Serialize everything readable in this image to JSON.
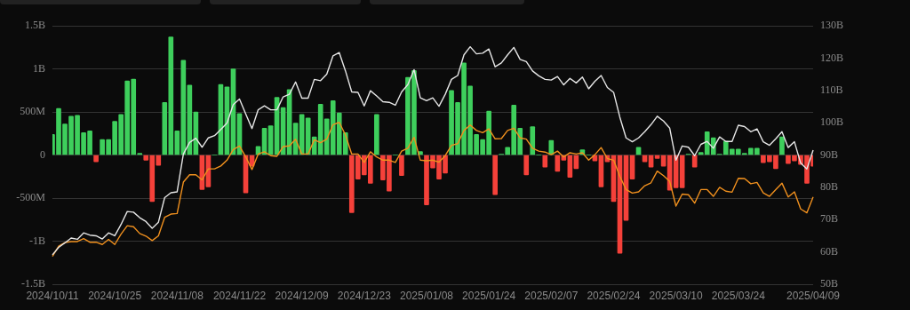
{
  "chart_data": {
    "type": "bar",
    "categories": [
      "2024/10/11",
      null,
      null,
      null,
      null,
      null,
      null,
      null,
      null,
      null,
      "2024/10/25",
      null,
      null,
      null,
      null,
      null,
      null,
      null,
      null,
      null,
      "2024/11/08",
      null,
      null,
      null,
      null,
      null,
      null,
      null,
      null,
      null,
      "2024/11/22",
      null,
      null,
      null,
      null,
      null,
      null,
      null,
      null,
      null,
      "2024/12/09",
      null,
      null,
      null,
      null,
      null,
      null,
      null,
      null,
      null,
      "2024/12/23",
      null,
      null,
      null,
      null,
      null,
      null,
      null,
      null,
      null,
      "2025/01/08",
      null,
      null,
      null,
      null,
      null,
      null,
      null,
      null,
      null,
      "2025/01/24",
      null,
      null,
      null,
      null,
      null,
      null,
      null,
      null,
      null,
      "2025/02/07",
      null,
      null,
      null,
      null,
      null,
      null,
      null,
      null,
      null,
      "2025/02/24",
      null,
      null,
      null,
      null,
      null,
      null,
      null,
      null,
      null,
      "2025/03/10",
      null,
      null,
      null,
      null,
      null,
      null,
      null,
      null,
      null,
      "2025/03/24",
      null,
      null,
      null,
      null,
      null,
      null,
      null,
      null,
      null,
      null,
      null,
      "2025/04/09"
    ],
    "series": [
      {
        "values": [
          240000000.0,
          540000000.0,
          360000000.0,
          450000000.0,
          460000000.0,
          260000000.0,
          280000000.0,
          -80000000.0,
          180000000.0,
          180000000.0,
          390000000.0,
          470000000.0,
          860000000.0,
          880000000.0,
          20000000.0,
          -60000000.0,
          -540000000.0,
          -120000000.0,
          610000000.0,
          1370000000.0,
          280000000.0,
          1100000000.0,
          810000000.0,
          500000000.0,
          -400000000.0,
          -370000000.0,
          0,
          820000000.0,
          790000000.0,
          1000000000.0,
          480000000.0,
          -440000000.0,
          -130000000.0,
          100000000.0,
          310000000.0,
          340000000.0,
          670000000.0,
          550000000.0,
          760000000.0,
          370000000.0,
          470000000.0,
          430000000.0,
          210000000.0,
          590000000.0,
          420000000.0,
          630000000.0,
          490000000.0,
          260000000.0,
          -670000000.0,
          -280000000.0,
          -230000000.0,
          -330000000.0,
          470000000.0,
          -290000000.0,
          -420000000.0,
          0,
          -240000000.0,
          900000000.0,
          980000000.0,
          40000000.0,
          -580000000.0,
          -150000000.0,
          -280000000.0,
          -210000000.0,
          750000000.0,
          610000000.0,
          1070000000.0,
          800000000.0,
          240000000.0,
          180000000.0,
          510000000.0,
          -460000000.0,
          10000000.0,
          90000000.0,
          580000000.0,
          310000000.0,
          -230000000.0,
          330000000.0,
          0,
          -140000000.0,
          170000000.0,
          -190000000.0,
          -60000000.0,
          -260000000.0,
          -160000000.0,
          60000000.0,
          0,
          -70000000.0,
          -370000000.0,
          -80000000.0,
          -540000000.0,
          -1140000000.0,
          -760000000.0,
          -280000000.0,
          90000000.0,
          -80000000.0,
          -140000000.0,
          -40000000.0,
          -130000000.0,
          -410000000.0,
          -380000000.0,
          -380000000.0,
          10000000.0,
          -140000000.0,
          30000000.0,
          270000000.0,
          200000000.0,
          10000000.0,
          160000000.0,
          70000000.0,
          70000000.0,
          20000000.0,
          80000000.0,
          80000000.0,
          -90000000.0,
          -80000000.0,
          -160000000.0,
          210000000.0,
          -100000000.0,
          -70000000.0,
          -110000000.0,
          -330000000.0,
          -130000000.0
        ],
        "colors": [
          "#3ecf5c",
          "#3ecf5c",
          "#3ecf5c",
          "#3ecf5c",
          "#3ecf5c",
          "#3ecf5c",
          "#3ecf5c",
          "#f5413a",
          "#3ecf5c",
          "#3ecf5c",
          "#3ecf5c",
          "#3ecf5c",
          "#3ecf5c",
          "#3ecf5c",
          "#3ecf5c",
          "#f5413a",
          "#f5413a",
          "#f5413a",
          "#3ecf5c",
          "#3ecf5c",
          "#3ecf5c",
          "#3ecf5c",
          "#3ecf5c",
          "#3ecf5c",
          "#f5413a",
          "#f5413a",
          "#3ecf5c",
          "#3ecf5c",
          "#3ecf5c",
          "#3ecf5c",
          "#3ecf5c",
          "#f5413a",
          "#f5413a",
          "#3ecf5c",
          "#3ecf5c",
          "#3ecf5c",
          "#3ecf5c",
          "#3ecf5c",
          "#3ecf5c",
          "#3ecf5c",
          "#3ecf5c",
          "#3ecf5c",
          "#3ecf5c",
          "#3ecf5c",
          "#3ecf5c",
          "#3ecf5c",
          "#3ecf5c",
          "#3ecf5c",
          "#f5413a",
          "#f5413a",
          "#f5413a",
          "#f5413a",
          "#3ecf5c",
          "#f5413a",
          "#f5413a",
          "#3ecf5c",
          "#f5413a",
          "#3ecf5c",
          "#3ecf5c",
          "#3ecf5c",
          "#f5413a",
          "#f5413a",
          "#f5413a",
          "#f5413a",
          "#3ecf5c",
          "#3ecf5c",
          "#3ecf5c",
          "#3ecf5c",
          "#3ecf5c",
          "#3ecf5c",
          "#3ecf5c",
          "#f5413a",
          "#3ecf5c",
          "#3ecf5c",
          "#3ecf5c",
          "#3ecf5c",
          "#f5413a",
          "#3ecf5c",
          "#3ecf5c",
          "#f5413a",
          "#3ecf5c",
          "#f5413a",
          "#f5413a",
          "#f5413a",
          "#f5413a",
          "#3ecf5c",
          "#3ecf5c",
          "#f5413a",
          "#f5413a",
          "#f5413a",
          "#f5413a",
          "#f5413a",
          "#f5413a",
          "#f5413a",
          "#3ecf5c",
          "#f5413a",
          "#f5413a",
          "#f5413a",
          "#f5413a",
          "#f5413a",
          "#f5413a",
          "#f5413a",
          "#3ecf5c",
          "#f5413a",
          "#3ecf5c",
          "#3ecf5c",
          "#3ecf5c",
          "#3ecf5c",
          "#3ecf5c",
          "#3ecf5c",
          "#3ecf5c",
          "#3ecf5c",
          "#3ecf5c",
          "#3ecf5c",
          "#f5413a",
          "#f5413a",
          "#f5413a",
          "#3ecf5c",
          "#f5413a",
          "#f5413a",
          "#f5413a",
          "#f5413a",
          "#f5413a"
        ]
      },
      {
        "type": "line",
        "axis": "y2",
        "color": "#e6e6e6",
        "values": [
          59.1,
          61.4,
          62.8,
          64.3,
          63.9,
          65.9,
          65.2,
          65.0,
          64.0,
          65.9,
          65.0,
          68.5,
          72.5,
          72.3,
          70.6,
          69.4,
          67.3,
          69.2,
          76.8,
          78.3,
          78.6,
          90.3,
          93.9,
          95.2,
          92.4,
          95.3,
          96.0,
          97.9,
          99.9,
          105.6,
          107.3,
          102.7,
          98.2,
          104.0,
          105.2,
          104.0,
          104.0,
          108.0,
          108.8,
          112.6,
          107.6,
          107.6,
          113.4,
          113.0,
          115.0,
          120.7,
          121.7,
          116.0,
          109.5,
          109.4,
          105.2,
          109.9,
          108.3,
          106.5,
          106.3,
          105.4,
          109.5,
          111.8,
          116.4,
          107.7,
          106.8,
          107.7,
          105.1,
          108.8,
          113.4,
          114.6,
          121.0,
          123.5,
          121.3,
          121.5,
          122.8,
          117.3,
          118.5,
          121.0,
          123.3,
          119.6,
          118.9,
          116.0,
          114.5,
          113.4,
          113.2,
          114.3,
          111.7,
          113.7,
          112.3,
          114.1,
          110.5,
          112.8,
          114.6,
          110.9,
          109.4,
          101.7,
          95.3,
          94.1,
          95.3,
          97.2,
          99.4,
          102.0,
          100.5,
          98.3,
          88.4,
          92.8,
          92.4,
          89.8,
          93.3,
          94.2,
          92.1,
          95.6,
          94.2,
          94.2,
          99.2,
          98.8,
          97.2,
          98.1,
          94.1,
          93.0,
          95.0,
          97.2,
          92.3,
          94.1,
          87.5,
          85.7,
          91.5
        ]
      },
      {
        "type": "line",
        "axis": "y2",
        "color": "#f0901e",
        "values": [
          58.6,
          61.8,
          62.9,
          63.2,
          63.2,
          64.1,
          63.0,
          63.0,
          62.3,
          63.9,
          62.3,
          65.5,
          68.1,
          67.8,
          65.7,
          64.9,
          63.5,
          65.0,
          70.7,
          71.7,
          71.9,
          81.6,
          83.9,
          83.9,
          82.3,
          85.7,
          85.7,
          86.6,
          88.4,
          91.7,
          92.8,
          89.4,
          85.5,
          90.3,
          91.0,
          89.8,
          89.6,
          92.6,
          92.8,
          94.9,
          90.3,
          90.3,
          94.7,
          93.8,
          94.9,
          99.4,
          100.1,
          96.2,
          90.3,
          90.3,
          87.7,
          91.0,
          89.4,
          88.4,
          88.4,
          87.7,
          91.2,
          92.1,
          95.5,
          88.4,
          88.2,
          88.4,
          87.8,
          89.8,
          93.0,
          93.5,
          97.6,
          99.3,
          97.6,
          96.9,
          98.1,
          95.0,
          95.1,
          97.6,
          98.3,
          95.3,
          94.9,
          92.1,
          91.2,
          90.9,
          90.1,
          91.2,
          89.4,
          90.7,
          90.3,
          90.7,
          88.4,
          90.1,
          92.3,
          88.9,
          88.4,
          83.4,
          79.3,
          78.2,
          78.6,
          80.5,
          81.4,
          85.0,
          83.6,
          81.8,
          74.2,
          77.9,
          77.7,
          75.1,
          79.3,
          79.3,
          77.2,
          80.0,
          78.8,
          78.5,
          82.8,
          82.7,
          81.1,
          81.5,
          78.3,
          77.2,
          79.3,
          81.3,
          77.0,
          78.6,
          73.3,
          72.1,
          77.0
        ]
      }
    ],
    "ylim": [
      -1500000000,
      1500000000
    ],
    "yticks": [
      {
        "value": -1500000000,
        "label": "-1.5B"
      },
      {
        "value": -1000000000,
        "label": "-1B"
      },
      {
        "value": -500000000,
        "label": "-500M"
      },
      0,
      {
        "value": 500000000,
        "label": "500M"
      },
      {
        "value": 1000000000,
        "label": "1B"
      },
      {
        "value": 1500000000,
        "label": "1.5B"
      }
    ],
    "y2lim": [
      50,
      130
    ],
    "y2ticks": [
      {
        "value": 50,
        "label": "50B"
      },
      {
        "value": 60,
        "label": "60B"
      },
      {
        "value": 70,
        "label": "70B"
      },
      {
        "value": 80,
        "label": "80B"
      },
      {
        "value": 90,
        "label": "90B"
      },
      {
        "value": 100,
        "label": "100B"
      },
      {
        "value": 110,
        "label": "110B"
      },
      {
        "value": 120,
        "label": "120B"
      },
      {
        "value": 130,
        "label": "130B"
      }
    ],
    "grid": "y",
    "legend": false,
    "marker": "none"
  }
}
